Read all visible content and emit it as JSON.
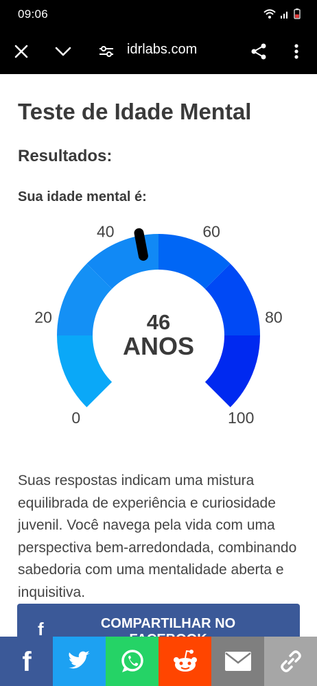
{
  "status": {
    "time": "09:06"
  },
  "browser": {
    "url": "idrlabs.com"
  },
  "page": {
    "title": "Teste de Idade Mental",
    "results_label": "Resultados:",
    "age_label": "Sua idade mental é:",
    "description": "Suas respostas indicam uma mistura equilibrada de experiência e curiosidade juvenil. Você navega pela vida com uma perspectiva bem-arredondada, combinando sabedoria com uma mentalidade aberta e inquisitiva.",
    "share_button_label": "COMPARTILHAR NO FACEBOOK"
  },
  "gauge": {
    "value": 46,
    "value_text": "46",
    "unit_text": "ANOS",
    "min": 0,
    "max": 100,
    "tick_labels": [
      "0",
      "20",
      "40",
      "60",
      "80",
      "100"
    ],
    "segment_colors": [
      "#0aa8f8",
      "#1490f5",
      "#1189f5",
      "#0066f5",
      "#0049f5",
      "#0029f0"
    ],
    "needle_color": "#000000"
  },
  "share_bar": [
    {
      "name": "facebook",
      "icon": "facebook-icon",
      "color": "#3b5998"
    },
    {
      "name": "twitter",
      "icon": "twitter-icon",
      "color": "#1da1f2"
    },
    {
      "name": "whatsapp",
      "icon": "whatsapp-icon",
      "color": "#25d366"
    },
    {
      "name": "reddit",
      "icon": "reddit-icon",
      "color": "#ff4500"
    },
    {
      "name": "email",
      "icon": "email-icon",
      "color": "#7f7f7f"
    },
    {
      "name": "link",
      "icon": "link-icon",
      "color": "#a6a6a6"
    }
  ]
}
